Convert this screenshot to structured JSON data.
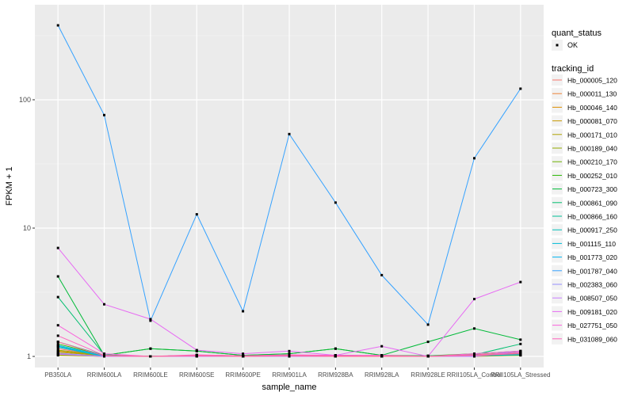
{
  "chart_data": {
    "type": "line",
    "xlabel": "sample_name",
    "ylabel": "FPKM + 1",
    "y_scale": "log10",
    "ylim": [
      0.82,
      550
    ],
    "y_ticks": [
      1,
      10,
      100
    ],
    "y_tick_labels": [
      "1",
      "10",
      "100"
    ],
    "grid": true,
    "legend_position": "right",
    "categories": [
      "PB350LA",
      "RRIM600LA",
      "RRIM600LE",
      "RRIM600SE",
      "RRIM600PE",
      "RRIM901LA",
      "RRIM928BA",
      "RRIM928LA",
      "RRIM928LE",
      "RRII105LA_Control",
      "RRII105LA_Stressed"
    ],
    "series": [
      {
        "name": "Hb_000005_120",
        "color": "#F8766D",
        "values": [
          1.15,
          1.01,
          1.0,
          1.02,
          1.01,
          1.02,
          1.02,
          1.01,
          1.01,
          1.02,
          1.06
        ]
      },
      {
        "name": "Hb_000011_130",
        "color": "#EC8239",
        "values": [
          1.05,
          1.0,
          1.0,
          1.01,
          1.0,
          1.01,
          1.0,
          1.0,
          1.0,
          1.01,
          1.03
        ]
      },
      {
        "name": "Hb_000046_140",
        "color": "#DB8E00",
        "values": [
          1.1,
          1.01,
          1.0,
          1.02,
          1.01,
          1.02,
          1.01,
          1.01,
          1.0,
          1.03,
          1.05
        ]
      },
      {
        "name": "Hb_000081_070",
        "color": "#C79800",
        "values": [
          1.02,
          1.0,
          1.0,
          1.0,
          1.0,
          1.0,
          1.0,
          1.0,
          1.0,
          1.0,
          1.02
        ]
      },
      {
        "name": "Hb_000171_010",
        "color": "#AFA100",
        "values": [
          1.08,
          1.01,
          1.0,
          1.01,
          1.0,
          1.01,
          1.01,
          1.0,
          1.0,
          1.02,
          1.04
        ]
      },
      {
        "name": "Hb_000189_040",
        "color": "#93AA00",
        "values": [
          1.12,
          1.02,
          1.0,
          1.02,
          1.01,
          1.02,
          1.02,
          1.01,
          1.0,
          1.03,
          1.08
        ]
      },
      {
        "name": "Hb_000210_170",
        "color": "#6FB100",
        "values": [
          1.03,
          1.0,
          1.0,
          1.01,
          1.0,
          1.01,
          1.0,
          1.0,
          1.0,
          1.01,
          1.02
        ]
      },
      {
        "name": "Hb_000252_010",
        "color": "#27B600",
        "values": [
          1.25,
          1.02,
          1.15,
          1.1,
          1.02,
          1.05,
          1.15,
          1.02,
          1.01,
          1.05,
          1.1
        ]
      },
      {
        "name": "Hb_000723_300",
        "color": "#00BA38",
        "values": [
          4.2,
          1.02,
          1.15,
          1.1,
          1.02,
          1.05,
          1.15,
          1.02,
          1.3,
          1.65,
          1.35
        ]
      },
      {
        "name": "Hb_000861_090",
        "color": "#00BE6F",
        "values": [
          2.9,
          1.03,
          1.0,
          1.02,
          1.01,
          1.02,
          1.02,
          1.01,
          1.01,
          1.03,
          1.25
        ]
      },
      {
        "name": "Hb_000866_160",
        "color": "#00C096",
        "values": [
          1.3,
          1.02,
          1.0,
          1.01,
          1.0,
          1.01,
          1.01,
          1.0,
          1.0,
          1.02,
          1.05
        ]
      },
      {
        "name": "Hb_000917_250",
        "color": "#00BFB8",
        "values": [
          1.2,
          1.01,
          1.0,
          1.01,
          1.0,
          1.01,
          1.0,
          1.0,
          1.0,
          1.01,
          1.04
        ]
      },
      {
        "name": "Hb_001115_110",
        "color": "#00BBD6",
        "values": [
          1.18,
          1.0,
          1.0,
          1.02,
          1.0,
          1.01,
          1.0,
          1.0,
          1.0,
          1.01,
          1.03
        ]
      },
      {
        "name": "Hb_001773_020",
        "color": "#00B4EF",
        "values": [
          1.22,
          1.01,
          1.0,
          1.02,
          1.01,
          1.01,
          1.01,
          1.0,
          1.0,
          1.02,
          1.05
        ]
      },
      {
        "name": "Hb_001787_040",
        "color": "#35A2FF",
        "values": [
          380,
          76,
          1.9,
          12.8,
          2.25,
          54,
          15.8,
          4.3,
          1.77,
          35,
          122
        ]
      },
      {
        "name": "Hb_002383_060",
        "color": "#9590FF",
        "values": [
          1.06,
          1.0,
          1.0,
          1.01,
          1.0,
          1.01,
          1.0,
          1.0,
          1.0,
          1.01,
          1.1
        ]
      },
      {
        "name": "Hb_008507_050",
        "color": "#C77CFF",
        "values": [
          1.04,
          1.0,
          1.0,
          1.0,
          1.0,
          1.0,
          1.0,
          1.0,
          1.0,
          1.0,
          1.08
        ]
      },
      {
        "name": "Hb_009181_020",
        "color": "#E76BF3",
        "values": [
          7.0,
          2.55,
          1.95,
          1.12,
          1.05,
          1.1,
          1.02,
          1.2,
          1.0,
          2.8,
          3.8
        ]
      },
      {
        "name": "Hb_027751_050",
        "color": "#FA62DB",
        "values": [
          1.75,
          1.05,
          1.0,
          1.03,
          1.01,
          1.03,
          1.02,
          1.02,
          1.0,
          1.05,
          1.1
        ]
      },
      {
        "name": "Hb_031089_060",
        "color": "#FF62BC",
        "values": [
          1.45,
          1.02,
          1.0,
          1.02,
          1.01,
          1.02,
          1.01,
          1.01,
          1.0,
          1.03,
          1.07
        ]
      }
    ],
    "series_extra": [
      {
        "color": "#FF6C91",
        "values": [
          1.3,
          1.01,
          1.0,
          1.01,
          1.0,
          1.01,
          1.0,
          1.0,
          1.0,
          1.02,
          1.05
        ]
      }
    ],
    "legend": {
      "quant_status_title": "quant_status",
      "quant_status_entry": "OK",
      "tracking_title": "tracking_id"
    }
  }
}
